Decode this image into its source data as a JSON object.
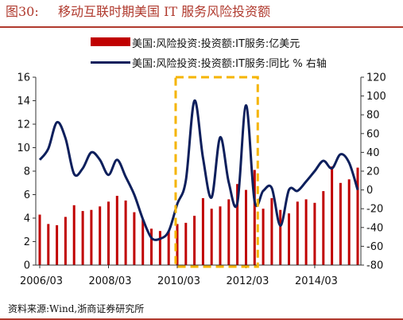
{
  "figure": {
    "number": "图30:",
    "title": "移动互联时期美国 IT 服务风险投资额",
    "source": "资料来源:Wind,浙商证券研究所"
  },
  "colors": {
    "bar": "#c00000",
    "line": "#0d1f5c",
    "highlight_box": "#f5b400",
    "title": "#b03a2e"
  },
  "chart_data": {
    "type": "bar+line",
    "x_ticks": [
      "2006/03",
      "2008/03",
      "2010/03",
      "2012/03",
      "2014/03"
    ],
    "y_left": {
      "range": [
        0,
        16
      ],
      "ticks": [
        0,
        2,
        4,
        6,
        8,
        10,
        12,
        14,
        16
      ]
    },
    "y_right": {
      "range": [
        -80,
        120
      ],
      "ticks": [
        -80,
        -60,
        -40,
        -20,
        0,
        20,
        40,
        60,
        80,
        100,
        120
      ]
    },
    "grid": false,
    "legend_position": "top-center",
    "highlight_box": {
      "from": "2010/03",
      "to": "2012/06",
      "style": "dashed"
    },
    "series": [
      {
        "name": "美国:风险投资:投资额:IT服务:亿美元",
        "type": "bar",
        "axis": "left",
        "x": [
          "2006/03",
          "2006/06",
          "2006/09",
          "2006/12",
          "2007/03",
          "2007/06",
          "2007/09",
          "2007/12",
          "2008/03",
          "2008/06",
          "2008/09",
          "2008/12",
          "2009/03",
          "2009/06",
          "2009/09",
          "2009/12",
          "2010/03",
          "2010/06",
          "2010/09",
          "2010/12",
          "2011/03",
          "2011/06",
          "2011/09",
          "2011/12",
          "2012/03",
          "2012/06",
          "2012/09",
          "2012/12",
          "2013/03",
          "2013/06",
          "2013/09",
          "2013/12",
          "2014/03",
          "2014/06",
          "2014/09",
          "2014/12",
          "2015/03",
          "2015/06"
        ],
        "values": [
          4.3,
          3.5,
          3.4,
          4.1,
          5.1,
          4.6,
          4.7,
          5.0,
          5.4,
          5.9,
          5.5,
          4.5,
          3.9,
          3.1,
          2.9,
          2.9,
          3.5,
          3.6,
          4.2,
          5.7,
          4.8,
          5.0,
          5.6,
          6.9,
          6.4,
          8.1,
          4.8,
          5.7,
          4.7,
          4.4,
          5.4,
          5.6,
          5.3,
          6.3,
          8.4,
          7.0,
          7.3,
          8.3
        ]
      },
      {
        "name": "美国:风险投资:投资额:IT服务:同比 % 右轴",
        "type": "line",
        "axis": "right",
        "x": [
          "2006/03",
          "2006/06",
          "2006/09",
          "2006/12",
          "2007/03",
          "2007/06",
          "2007/09",
          "2007/12",
          "2008/03",
          "2008/06",
          "2008/09",
          "2008/12",
          "2009/03",
          "2009/06",
          "2009/09",
          "2009/12",
          "2010/03",
          "2010/06",
          "2010/09",
          "2010/12",
          "2011/03",
          "2011/06",
          "2011/09",
          "2011/12",
          "2012/03",
          "2012/06",
          "2012/09",
          "2012/12",
          "2013/03",
          "2013/06",
          "2013/09",
          "2013/12",
          "2014/03",
          "2014/06",
          "2014/09",
          "2014/12",
          "2015/03",
          "2015/06"
        ],
        "values": [
          32,
          44,
          72,
          55,
          17,
          23,
          40,
          32,
          16,
          32,
          14,
          -5,
          -31,
          -51,
          -52,
          -44,
          -15,
          10,
          95,
          34,
          -8,
          56,
          8,
          -14,
          90,
          -12,
          -1,
          2,
          -38,
          0,
          -1,
          9,
          20,
          31,
          23,
          38,
          29,
          0
        ]
      }
    ]
  }
}
